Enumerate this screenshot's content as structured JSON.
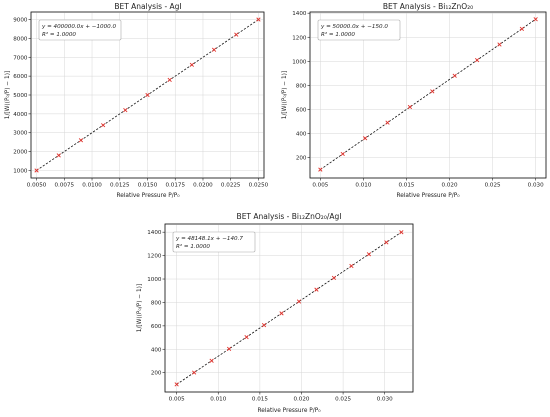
{
  "chart_data": [
    {
      "type": "scatter",
      "title": "BET Analysis - AgI",
      "xlabel": "Relative Pressure P/P₀",
      "ylabel": "1/[W((P₀/P) − 1)]",
      "fit_label": "y = 400000.0x + −1000.0",
      "r2_label": "R² = 1.0000",
      "xlim": [
        0.0045,
        0.0255
      ],
      "ylim": [
        600,
        9400
      ],
      "xticks": [
        "0.0050",
        "0.0075",
        "0.0100",
        "0.0125",
        "0.0150",
        "0.0175",
        "0.0200",
        "0.0225",
        "0.0250"
      ],
      "xtick_values": [
        0.005,
        0.0075,
        0.01,
        0.0125,
        0.015,
        0.0175,
        0.02,
        0.0225,
        0.025
      ],
      "yticks": [
        "1000",
        "2000",
        "3000",
        "4000",
        "5000",
        "6000",
        "7000",
        "8000",
        "9000"
      ],
      "ytick_values": [
        1000,
        2000,
        3000,
        4000,
        5000,
        6000,
        7000,
        8000,
        9000
      ],
      "x": [
        0.005,
        0.007,
        0.009,
        0.011,
        0.013,
        0.015,
        0.017,
        0.019,
        0.021,
        0.023,
        0.025
      ],
      "y": [
        1000,
        1800,
        2600,
        3400,
        4200,
        5000,
        5800,
        6600,
        7400,
        8200,
        9000
      ],
      "fit": {
        "slope": 400000.0,
        "intercept": -1000.0
      },
      "grid": true,
      "legend": "top-left"
    },
    {
      "type": "scatter",
      "title": "BET Analysis - Bi₁₂ZnO₂₀",
      "xlabel": "Relative Pressure P/P₀",
      "ylabel": "1/[W((P₀/P) − 1)]",
      "fit_label": "y = 50000.0x + −150.0",
      "r2_label": "R² = 1.0000",
      "xlim": [
        0.0038,
        0.0312
      ],
      "ylim": [
        30,
        1410
      ],
      "xticks": [
        "0.005",
        "0.010",
        "0.015",
        "0.020",
        "0.025",
        "0.030"
      ],
      "xtick_values": [
        0.005,
        0.01,
        0.015,
        0.02,
        0.025,
        0.03
      ],
      "yticks": [
        "200",
        "400",
        "600",
        "800",
        "1000",
        "1200",
        "1400"
      ],
      "ytick_values": [
        200,
        400,
        600,
        800,
        1000,
        1200,
        1400
      ],
      "x": [
        0.005,
        0.0076,
        0.0102,
        0.0128,
        0.0154,
        0.018,
        0.0206,
        0.0232,
        0.0258,
        0.0284,
        0.03
      ],
      "y": [
        100,
        230,
        360,
        490,
        620,
        750,
        880,
        1010,
        1140,
        1270,
        1350
      ],
      "fit": {
        "slope": 50000.0,
        "intercept": -150.0
      },
      "grid": true,
      "legend": "top-left"
    },
    {
      "type": "scatter",
      "title": "BET Analysis - Bi₁₂ZnO₂₀/AgI",
      "xlabel": "Relative Pressure P/P₀",
      "ylabel": "1/[W((P₀/P) − 1)]",
      "fit_label": "y = 48148.1x + −140.7",
      "r2_label": "R² = 1.0000",
      "xlim": [
        0.0036,
        0.0334
      ],
      "ylim": [
        35,
        1470
      ],
      "xticks": [
        "0.005",
        "0.010",
        "0.015",
        "0.020",
        "0.025",
        "0.030"
      ],
      "xtick_values": [
        0.005,
        0.01,
        0.015,
        0.02,
        0.025,
        0.03
      ],
      "yticks": [
        "200",
        "400",
        "600",
        "800",
        "1000",
        "1200",
        "1400"
      ],
      "ytick_values": [
        200,
        400,
        600,
        800,
        1000,
        1200,
        1400
      ],
      "x": [
        0.005,
        0.0071,
        0.0092,
        0.0113,
        0.0134,
        0.0155,
        0.0176,
        0.0197,
        0.0218,
        0.0239,
        0.026,
        0.0281,
        0.0302,
        0.032
      ],
      "y": [
        100,
        201,
        302,
        403,
        504,
        606,
        707,
        808,
        909,
        1010,
        1111,
        1212,
        1313,
        1400
      ],
      "fit": {
        "slope": 48148.1,
        "intercept": -140.7
      },
      "grid": true,
      "legend": "top-left"
    }
  ]
}
